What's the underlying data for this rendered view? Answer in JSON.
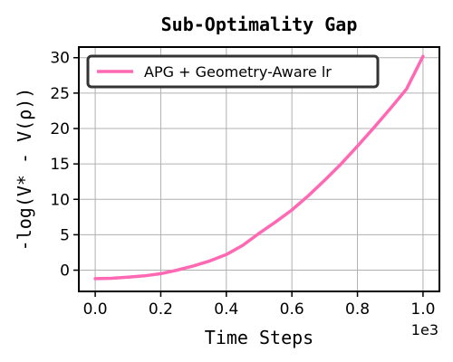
{
  "chart_data": {
    "type": "line",
    "title": "Sub-Optimality Gap",
    "xlabel": "Time Steps",
    "ylabel": "-log(V* - V(ρ))",
    "x_offset_label": "1e3",
    "xlim": [
      -0.05,
      1.05
    ],
    "ylim": [
      -3,
      31.5
    ],
    "x_ticks": [
      0.0,
      0.2,
      0.4,
      0.6,
      0.8,
      1.0
    ],
    "x_tick_labels": [
      "0.0",
      "0.2",
      "0.4",
      "0.6",
      "0.8",
      "1.0"
    ],
    "y_ticks": [
      0,
      5,
      10,
      15,
      20,
      25,
      30
    ],
    "y_tick_labels": [
      "0",
      "5",
      "10",
      "15",
      "20",
      "25",
      "30"
    ],
    "grid": true,
    "legend_position": "top-left",
    "series": [
      {
        "name": "APG + Geometry-Aware lr",
        "color": "#ff69b4",
        "x": [
          0.0,
          0.05,
          0.1,
          0.15,
          0.2,
          0.25,
          0.3,
          0.35,
          0.4,
          0.45,
          0.5,
          0.55,
          0.6,
          0.65,
          0.7,
          0.75,
          0.8,
          0.85,
          0.9,
          0.95,
          1.0
        ],
        "y": [
          -1.2,
          -1.15,
          -1.0,
          -0.8,
          -0.5,
          0.0,
          0.6,
          1.3,
          2.2,
          3.5,
          5.2,
          6.8,
          8.5,
          10.5,
          12.7,
          15.0,
          17.5,
          20.1,
          22.8,
          25.6,
          30.2
        ]
      }
    ]
  }
}
